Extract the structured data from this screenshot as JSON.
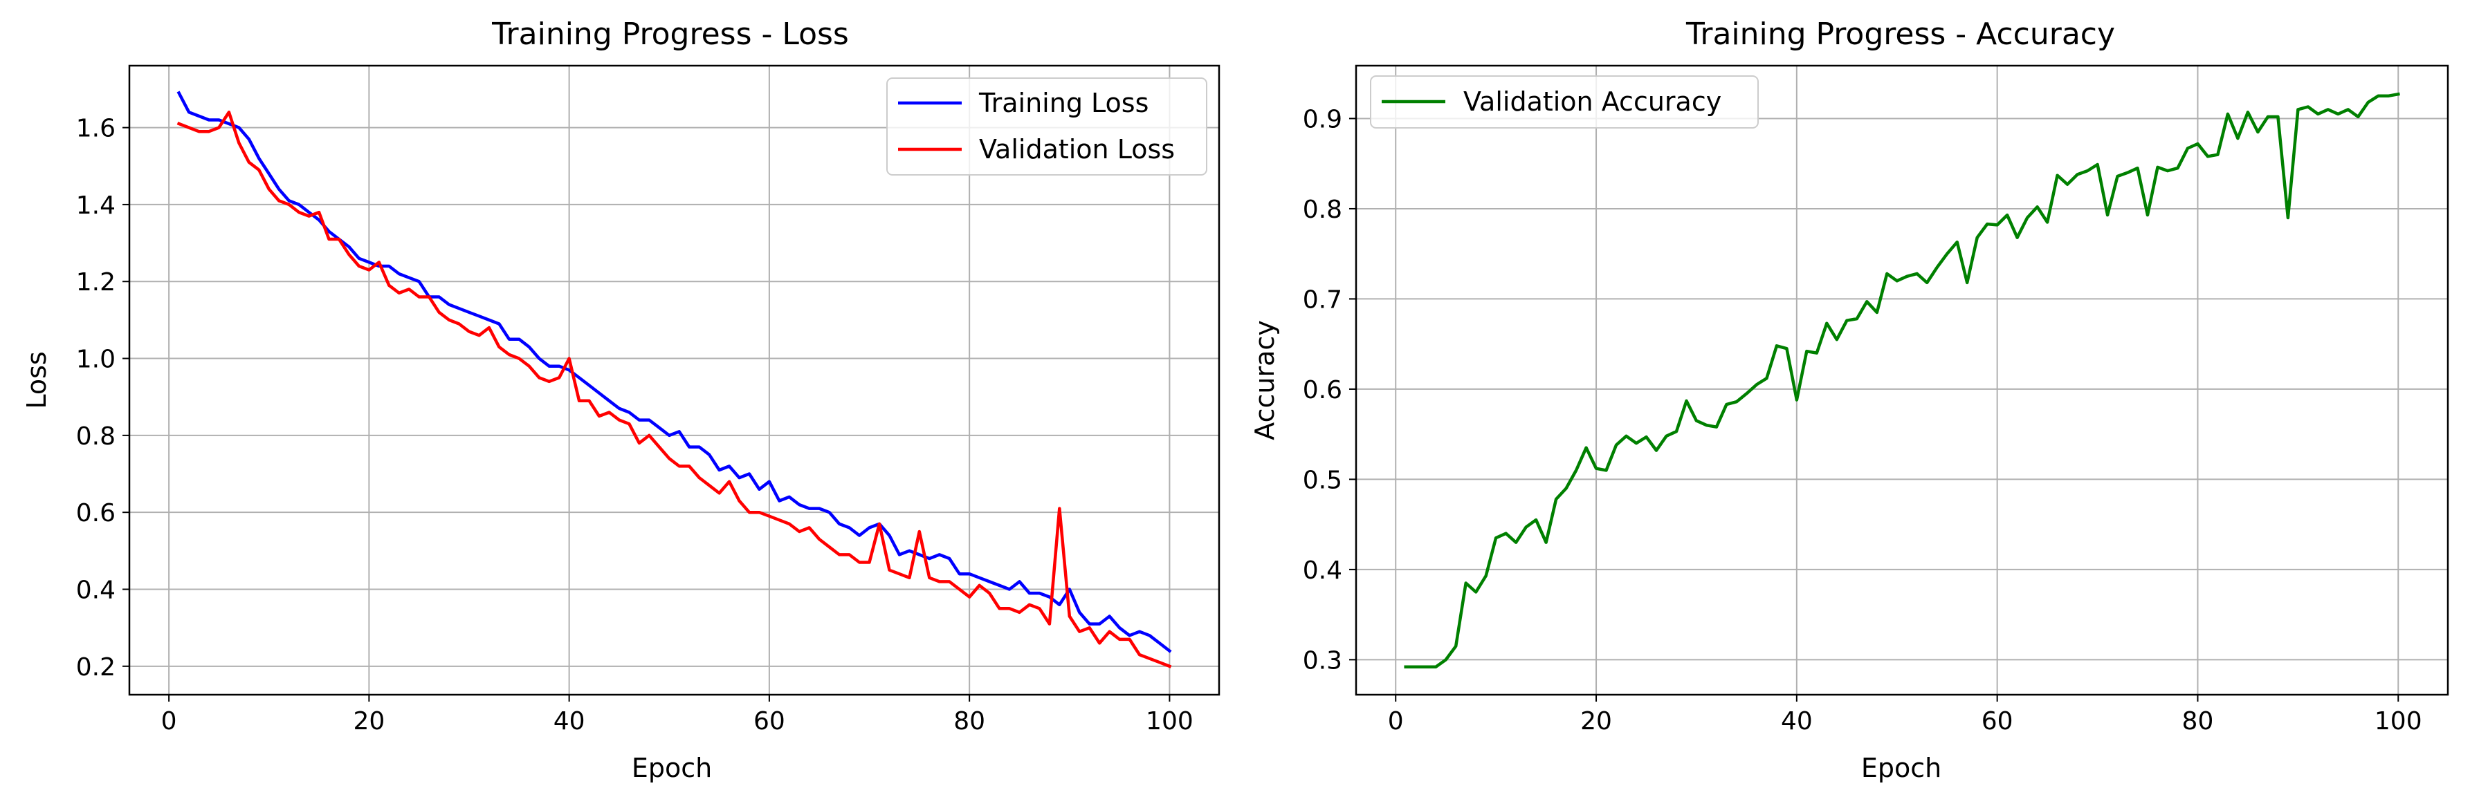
{
  "chart_data": [
    {
      "type": "line",
      "title": "Training Progress - Loss",
      "xlabel": "Epoch",
      "ylabel": "Loss",
      "xlim": [
        -3.95,
        104.95
      ],
      "ylim": [
        0.126,
        1.761
      ],
      "xticks": [
        0,
        20,
        40,
        60,
        80,
        100
      ],
      "yticks": [
        0.2,
        0.4,
        0.6,
        0.8,
        1.0,
        1.2,
        1.4,
        1.6
      ],
      "xtick_labels": [
        "0",
        "20",
        "40",
        "60",
        "80",
        "100"
      ],
      "ytick_labels": [
        "0.2",
        "0.4",
        "0.6",
        "0.8",
        "1.0",
        "1.2",
        "1.4",
        "1.6"
      ],
      "grid": true,
      "legend_position": "top-right",
      "x": [
        1,
        2,
        3,
        4,
        5,
        6,
        7,
        8,
        9,
        10,
        11,
        12,
        13,
        14,
        15,
        16,
        17,
        18,
        19,
        20,
        21,
        22,
        23,
        24,
        25,
        26,
        27,
        28,
        29,
        30,
        31,
        32,
        33,
        34,
        35,
        36,
        37,
        38,
        39,
        40,
        41,
        42,
        43,
        44,
        45,
        46,
        47,
        48,
        49,
        50,
        51,
        52,
        53,
        54,
        55,
        56,
        57,
        58,
        59,
        60,
        61,
        62,
        63,
        64,
        65,
        66,
        67,
        68,
        69,
        70,
        71,
        72,
        73,
        74,
        75,
        76,
        77,
        78,
        79,
        80,
        81,
        82,
        83,
        84,
        85,
        86,
        87,
        88,
        89,
        90,
        91,
        92,
        93,
        94,
        95,
        96,
        97,
        98,
        99,
        100
      ],
      "series": [
        {
          "name": "Training Loss",
          "color": "#0000ff",
          "values": [
            1.69,
            1.64,
            1.63,
            1.62,
            1.62,
            1.61,
            1.6,
            1.57,
            1.52,
            1.48,
            1.44,
            1.41,
            1.4,
            1.38,
            1.36,
            1.33,
            1.31,
            1.29,
            1.26,
            1.25,
            1.24,
            1.24,
            1.22,
            1.21,
            1.2,
            1.16,
            1.16,
            1.14,
            1.13,
            1.12,
            1.11,
            1.1,
            1.09,
            1.05,
            1.05,
            1.03,
            1.0,
            0.98,
            0.98,
            0.97,
            0.95,
            0.93,
            0.91,
            0.89,
            0.87,
            0.86,
            0.84,
            0.84,
            0.82,
            0.8,
            0.81,
            0.77,
            0.77,
            0.75,
            0.71,
            0.72,
            0.69,
            0.7,
            0.66,
            0.68,
            0.63,
            0.64,
            0.62,
            0.61,
            0.61,
            0.6,
            0.57,
            0.56,
            0.54,
            0.56,
            0.57,
            0.54,
            0.49,
            0.5,
            0.49,
            0.48,
            0.49,
            0.48,
            0.44,
            0.44,
            0.43,
            0.42,
            0.41,
            0.4,
            0.42,
            0.39,
            0.39,
            0.38,
            0.36,
            0.4,
            0.34,
            0.31,
            0.31,
            0.33,
            0.3,
            0.28,
            0.29,
            0.28,
            0.26,
            0.24
          ]
        },
        {
          "name": "Validation Loss",
          "color": "#ff0000",
          "values": [
            1.61,
            1.6,
            1.59,
            1.59,
            1.6,
            1.64,
            1.56,
            1.51,
            1.49,
            1.44,
            1.41,
            1.4,
            1.38,
            1.37,
            1.38,
            1.31,
            1.31,
            1.27,
            1.24,
            1.23,
            1.25,
            1.19,
            1.17,
            1.18,
            1.16,
            1.16,
            1.12,
            1.1,
            1.09,
            1.07,
            1.06,
            1.08,
            1.03,
            1.01,
            1.0,
            0.98,
            0.95,
            0.94,
            0.95,
            1.0,
            0.89,
            0.89,
            0.85,
            0.86,
            0.84,
            0.83,
            0.78,
            0.8,
            0.77,
            0.74,
            0.72,
            0.72,
            0.69,
            0.67,
            0.65,
            0.68,
            0.63,
            0.6,
            0.6,
            0.59,
            0.58,
            0.57,
            0.55,
            0.56,
            0.53,
            0.51,
            0.49,
            0.49,
            0.47,
            0.47,
            0.57,
            0.45,
            0.44,
            0.43,
            0.55,
            0.43,
            0.42,
            0.42,
            0.4,
            0.38,
            0.41,
            0.39,
            0.35,
            0.35,
            0.34,
            0.36,
            0.35,
            0.31,
            0.61,
            0.33,
            0.29,
            0.3,
            0.26,
            0.29,
            0.27,
            0.27,
            0.23,
            0.22,
            0.21,
            0.2
          ]
        }
      ]
    },
    {
      "type": "line",
      "title": "Training Progress - Accuracy",
      "xlabel": "Epoch",
      "ylabel": "Accuracy",
      "xlim": [
        -3.95,
        104.95
      ],
      "ylim": [
        0.2612,
        0.9586
      ],
      "xticks": [
        0,
        20,
        40,
        60,
        80,
        100
      ],
      "yticks": [
        0.3,
        0.4,
        0.5,
        0.6,
        0.7,
        0.8,
        0.9
      ],
      "xtick_labels": [
        "0",
        "20",
        "40",
        "60",
        "80",
        "100"
      ],
      "ytick_labels": [
        "0.3",
        "0.4",
        "0.5",
        "0.6",
        "0.7",
        "0.8",
        "0.9"
      ],
      "grid": true,
      "legend_position": "top-left",
      "x": [
        1,
        2,
        3,
        4,
        5,
        6,
        7,
        8,
        9,
        10,
        11,
        12,
        13,
        14,
        15,
        16,
        17,
        18,
        19,
        20,
        21,
        22,
        23,
        24,
        25,
        26,
        27,
        28,
        29,
        30,
        31,
        32,
        33,
        34,
        35,
        36,
        37,
        38,
        39,
        40,
        41,
        42,
        43,
        44,
        45,
        46,
        47,
        48,
        49,
        50,
        51,
        52,
        53,
        54,
        55,
        56,
        57,
        58,
        59,
        60,
        61,
        62,
        63,
        64,
        65,
        66,
        67,
        68,
        69,
        70,
        71,
        72,
        73,
        74,
        75,
        76,
        77,
        78,
        79,
        80,
        81,
        82,
        83,
        84,
        85,
        86,
        87,
        88,
        89,
        90,
        91,
        92,
        93,
        94,
        95,
        96,
        97,
        98,
        99,
        100
      ],
      "series": [
        {
          "name": "Validation Accuracy",
          "color": "#008000",
          "values": [
            0.292,
            0.292,
            0.292,
            0.292,
            0.3,
            0.315,
            0.385,
            0.375,
            0.393,
            0.435,
            0.44,
            0.43,
            0.447,
            0.455,
            0.43,
            0.478,
            0.49,
            0.51,
            0.535,
            0.512,
            0.51,
            0.538,
            0.548,
            0.54,
            0.547,
            0.532,
            0.548,
            0.553,
            0.587,
            0.565,
            0.56,
            0.558,
            0.583,
            0.586,
            0.595,
            0.605,
            0.612,
            0.648,
            0.645,
            0.588,
            0.642,
            0.64,
            0.673,
            0.655,
            0.676,
            0.678,
            0.697,
            0.685,
            0.728,
            0.72,
            0.725,
            0.728,
            0.718,
            0.735,
            0.75,
            0.763,
            0.718,
            0.768,
            0.783,
            0.782,
            0.793,
            0.768,
            0.79,
            0.802,
            0.785,
            0.837,
            0.827,
            0.838,
            0.842,
            0.849,
            0.793,
            0.836,
            0.84,
            0.845,
            0.793,
            0.846,
            0.842,
            0.845,
            0.867,
            0.872,
            0.858,
            0.86,
            0.905,
            0.878,
            0.907,
            0.885,
            0.902,
            0.902,
            0.79,
            0.91,
            0.913,
            0.905,
            0.91,
            0.905,
            0.91,
            0.902,
            0.918,
            0.925,
            0.925,
            0.927
          ]
        }
      ]
    }
  ]
}
